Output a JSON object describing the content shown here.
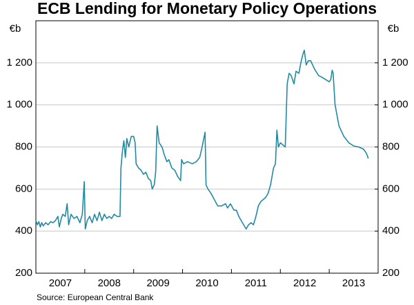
{
  "chart_data": {
    "type": "line",
    "title": "ECB Lending for Monetary Policy Operations",
    "y_unit": "€b",
    "y2_unit": "€b",
    "source": "Source: European Central Bank",
    "x": [
      2007.0,
      2007.03,
      2007.06,
      2007.09,
      2007.12,
      2007.15,
      2007.2,
      2007.25,
      2007.3,
      2007.35,
      2007.4,
      2007.45,
      2007.48,
      2007.52,
      2007.55,
      2007.6,
      2007.64,
      2007.67,
      2007.72,
      2007.78,
      2007.84,
      2007.9,
      2007.95,
      2007.99,
      2008.01,
      2008.05,
      2008.1,
      2008.15,
      2008.2,
      2008.25,
      2008.3,
      2008.35,
      2008.4,
      2008.45,
      2008.5,
      2008.55,
      2008.6,
      2008.66,
      2008.72,
      2008.74,
      2008.77,
      2008.8,
      2008.83,
      2008.86,
      2008.9,
      2008.95,
      2009.0,
      2009.03,
      2009.05,
      2009.1,
      2009.15,
      2009.2,
      2009.25,
      2009.3,
      2009.35,
      2009.38,
      2009.42,
      2009.45,
      2009.48,
      2009.52,
      2009.58,
      2009.63,
      2009.68,
      2009.72,
      2009.78,
      2009.84,
      2009.9,
      2009.96,
      2009.98,
      2010.02,
      2010.1,
      2010.2,
      2010.28,
      2010.35,
      2010.4,
      2010.46,
      2010.48,
      2010.52,
      2010.58,
      2010.65,
      2010.72,
      2010.8,
      2010.88,
      2010.92,
      2010.98,
      2011.05,
      2011.1,
      2011.15,
      2011.2,
      2011.25,
      2011.3,
      2011.35,
      2011.4,
      2011.45,
      2011.5,
      2011.55,
      2011.6,
      2011.7,
      2011.75,
      2011.8,
      2011.86,
      2011.9,
      2011.93,
      2011.96,
      2012.0,
      2012.1,
      2012.14,
      2012.18,
      2012.22,
      2012.28,
      2012.32,
      2012.38,
      2012.42,
      2012.46,
      2012.49,
      2012.53,
      2012.57,
      2012.62,
      2012.7,
      2012.78,
      2012.86,
      2012.93,
      2013.0,
      2013.03,
      2013.06,
      2013.08,
      2013.12,
      2013.2,
      2013.3,
      2013.4,
      2013.5,
      2013.6,
      2013.7,
      2013.76,
      2013.8
    ],
    "series": [
      {
        "color": "#1f8aa3",
        "values": [
          450,
          430,
          445,
          420,
          440,
          425,
          440,
          430,
          445,
          440,
          450,
          470,
          420,
          460,
          480,
          470,
          530,
          430,
          480,
          460,
          470,
          440,
          480,
          635,
          410,
          450,
          470,
          440,
          480,
          450,
          490,
          450,
          480,
          460,
          470,
          460,
          480,
          470,
          470,
          700,
          780,
          830,
          750,
          840,
          800,
          850,
          850,
          820,
          720,
          700,
          690,
          670,
          680,
          650,
          640,
          600,
          620,
          680,
          900,
          820,
          800,
          760,
          730,
          740,
          700,
          690,
          660,
          640,
          740,
          720,
          730,
          720,
          730,
          750,
          800,
          870,
          620,
          600,
          580,
          550,
          520,
          520,
          530,
          510,
          530,
          500,
          500,
          470,
          450,
          430,
          410,
          430,
          440,
          430,
          470,
          520,
          540,
          560,
          580,
          620,
          700,
          720,
          880,
          800,
          820,
          800,
          1100,
          1150,
          1140,
          1100,
          1160,
          1150,
          1200,
          1240,
          1260,
          1190,
          1210,
          1210,
          1170,
          1140,
          1130,
          1120,
          1110,
          1120,
          1165,
          1150,
          1000,
          900,
          850,
          820,
          805,
          800,
          790,
          770,
          745
        ]
      }
    ],
    "xlim": [
      2007,
      2014
    ],
    "xticks": [
      2007,
      2008,
      2009,
      2010,
      2011,
      2012,
      2013,
      2014
    ],
    "x_tick_labels": [
      "2007",
      "2008",
      "2009",
      "2010",
      "2011",
      "2012",
      "2013"
    ],
    "ylim": [
      200,
      1400
    ],
    "yticks": [
      200,
      400,
      600,
      800,
      {
        "value": 1000,
        "label": "1 000"
      },
      {
        "value": 1200,
        "label": "1 200"
      }
    ],
    "y2lim": [
      200,
      1400
    ],
    "y2ticks": [
      200,
      400,
      600,
      800,
      {
        "value": 1000,
        "label": "1 000"
      },
      {
        "value": 1200,
        "label": "1 200"
      }
    ],
    "grid": true
  }
}
